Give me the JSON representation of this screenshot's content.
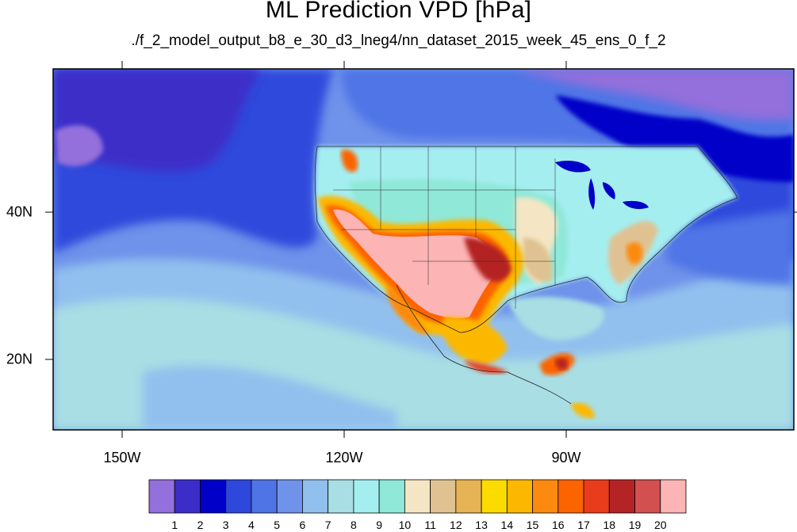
{
  "title": "ML Prediction VPD [hPa]",
  "subtitle": "./f_2_model_output_b8_e_30_d3_lneg4/nn_dataset_2015_week_45_ens_0_f_2",
  "longitude_labels": [
    "150W",
    "120W",
    "90W"
  ],
  "latitude_labels": [
    "40N",
    "20N"
  ],
  "colorbar": {
    "labels": [
      "1",
      "2",
      "3",
      "4",
      "5",
      "6",
      "7",
      "8",
      "9",
      "10",
      "11",
      "12",
      "13",
      "14",
      "15",
      "16",
      "17",
      "18",
      "19",
      "20"
    ],
    "colors": [
      "#9370db",
      "#3c2dc8",
      "#0000c8",
      "#2e48dc",
      "#4f74e6",
      "#6f92ea",
      "#92c0ee",
      "#a8dee4",
      "#a4eef0",
      "#90e8d8",
      "#f4e6c4",
      "#e0c292",
      "#e6b454",
      "#fcdc00",
      "#fcb800",
      "#fc8a10",
      "#fc6400",
      "#e83c1c",
      "#b42424",
      "#d25050",
      "#fcb4b4"
    ]
  },
  "map": {
    "projection_extent": "lon -160 to -58, lat 10 to 60",
    "ocean_colors": {
      "north_pacific": "#4f74e6",
      "far_north": "#2e48dc",
      "subtropical": "#a8dee4",
      "mid": "#6f92ea",
      "atlantic": "#4f74e6",
      "arctic_edge": "#9370db"
    }
  }
}
